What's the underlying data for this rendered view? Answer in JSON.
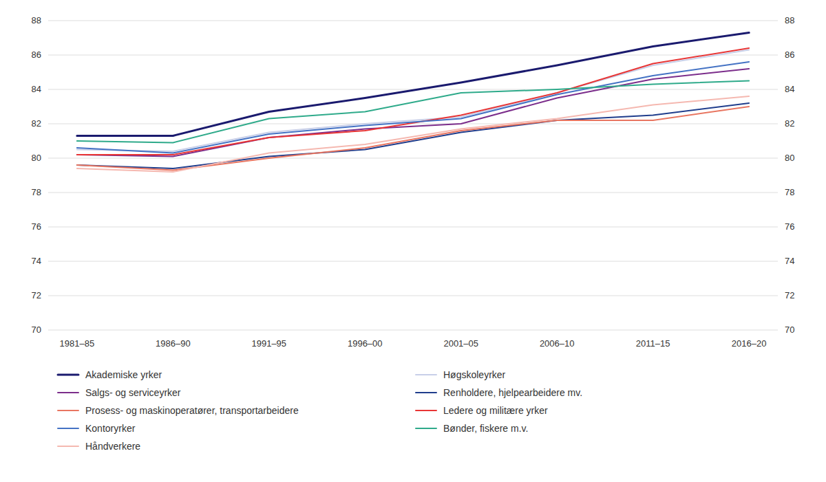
{
  "chart_data": {
    "type": "line",
    "categories": [
      "1981–85",
      "1986–90",
      "1991–95",
      "1996–00",
      "2001–05",
      "2006–10",
      "2011–15",
      "2016–20"
    ],
    "series": [
      {
        "name": "Akademiske yrker",
        "color": "#1a1a6e",
        "values": [
          81.3,
          81.3,
          82.7,
          83.5,
          84.4,
          85.4,
          86.5,
          87.3
        ]
      },
      {
        "name": "Høgskoleyrker",
        "color": "#c8cfe8",
        "values": [
          80.5,
          80.4,
          81.5,
          82.0,
          82.4,
          83.8,
          85.4,
          86.3
        ]
      },
      {
        "name": "Salgs- og serviceyrker",
        "color": "#7b2d8b",
        "values": [
          80.2,
          80.1,
          81.2,
          81.7,
          82.0,
          83.5,
          84.6,
          85.2
        ]
      },
      {
        "name": "Renholdere, hjelpearbeidere mv.",
        "color": "#1f3d8c",
        "values": [
          79.6,
          79.4,
          80.1,
          80.5,
          81.5,
          82.2,
          82.5,
          83.2
        ]
      },
      {
        "name": "Prosess- og maskinoperatører, transportarbeidere",
        "color": "#e87560",
        "values": [
          79.6,
          79.3,
          80.0,
          80.6,
          81.6,
          82.2,
          82.2,
          83.0
        ]
      },
      {
        "name": "Ledere og militære yrker",
        "color": "#e83535",
        "values": [
          80.2,
          80.2,
          81.2,
          81.6,
          82.5,
          83.8,
          85.5,
          86.4
        ]
      },
      {
        "name": "Kontoryrker",
        "color": "#4472c4",
        "values": [
          80.6,
          80.3,
          81.4,
          81.9,
          82.3,
          83.7,
          84.8,
          85.6
        ]
      },
      {
        "name": "Bønder, fiskere m.v.",
        "color": "#2eaa8a",
        "values": [
          81.0,
          80.9,
          82.3,
          82.7,
          83.8,
          84.0,
          84.3,
          84.5
        ]
      },
      {
        "name": "Håndverkere",
        "color": "#f5b8b0",
        "values": [
          79.4,
          79.2,
          80.3,
          80.8,
          81.7,
          82.3,
          83.1,
          83.6
        ]
      }
    ],
    "ylim": [
      70,
      88
    ],
    "yticks": [
      70,
      72,
      74,
      76,
      78,
      80,
      82,
      84,
      86,
      88
    ],
    "y2lim": [
      70,
      88
    ],
    "y2ticks": [
      70,
      72,
      74,
      76,
      78,
      80,
      82,
      84,
      86,
      88
    ],
    "grid": true,
    "legend": "bottom"
  }
}
